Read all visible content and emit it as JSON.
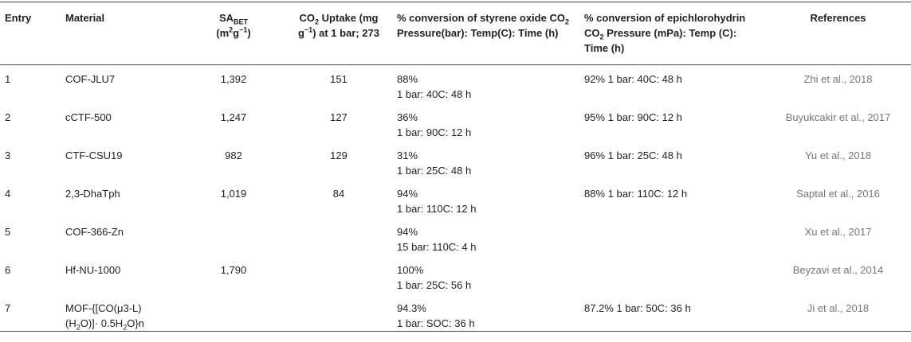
{
  "table": {
    "headers": [
      [
        "Entry"
      ],
      [
        "Material"
      ],
      [
        "SA",
        "BET",
        "(m",
        "2",
        "g",
        "−1",
        ")"
      ],
      [
        "CO",
        "2",
        " Uptake (mg g",
        "−1",
        ") at 1 bar; 273"
      ],
      [
        "% conversion of styrene oxide CO",
        "2",
        " Pressure(bar): Temp(C): Time (h)"
      ],
      [
        "% conversion of epichlorohydrin CO",
        "2",
        " Pressure (mPa): Temp (C): Time (h)"
      ],
      [
        "References"
      ]
    ],
    "rows": [
      {
        "entry": "1",
        "material": "COF-JLU7",
        "sa_bet": "1,392",
        "co2_uptake": "151",
        "styrene_oxide": [
          "88%",
          "1 bar: 40C: 48 h"
        ],
        "epichlorohydrin": "92% 1 bar: 40C: 48 h",
        "reference": "Zhi et al., 2018"
      },
      {
        "entry": "2",
        "material": "cCTF-500",
        "sa_bet": "1,247",
        "co2_uptake": "127",
        "styrene_oxide": [
          "36%",
          "1 bar: 90C: 12 h"
        ],
        "epichlorohydrin": "95% 1 bar: 90C: 12 h",
        "reference": "Buyukcakir et al., 2017"
      },
      {
        "entry": "3",
        "material": "CTF-CSU19",
        "sa_bet": "982",
        "co2_uptake": "129",
        "styrene_oxide": [
          "31%",
          "1 bar: 25C: 48 h"
        ],
        "epichlorohydrin": "96% 1 bar: 25C: 48 h",
        "reference": "Yu et al., 2018"
      },
      {
        "entry": "4",
        "material": "2,3-DhaTph",
        "sa_bet": "1,019",
        "co2_uptake": "84",
        "styrene_oxide": [
          "94%",
          "1 bar: 110C: 12 h"
        ],
        "epichlorohydrin": "88% 1 bar: 110C: 12 h",
        "reference": "Saptal et al., 2016"
      },
      {
        "entry": "5",
        "material": "COF-366-Zn",
        "styrene_oxide": [
          "94%",
          "15 bar: 110C: 4 h"
        ],
        "reference": "Xu et al., 2017"
      },
      {
        "entry": "6",
        "material": "Hf-NU-1000",
        "sa_bet": "1,790",
        "styrene_oxide": [
          "100%",
          "1 bar: 25C: 56 h"
        ],
        "reference": "Beyzavi et al., 2014"
      },
      {
        "entry": "7",
        "material": [
          "MOF-{[CO(μ3-L) (H",
          "2",
          "O)]· 0.5H",
          "2",
          "O}n"
        ],
        "styrene_oxide": [
          "94.3%",
          "1 bar: SOC: 36 h"
        ],
        "epichlorohydrin": "87.2% 1 bar: 50C: 36 h",
        "reference": "Ji et al., 2018"
      }
    ]
  }
}
